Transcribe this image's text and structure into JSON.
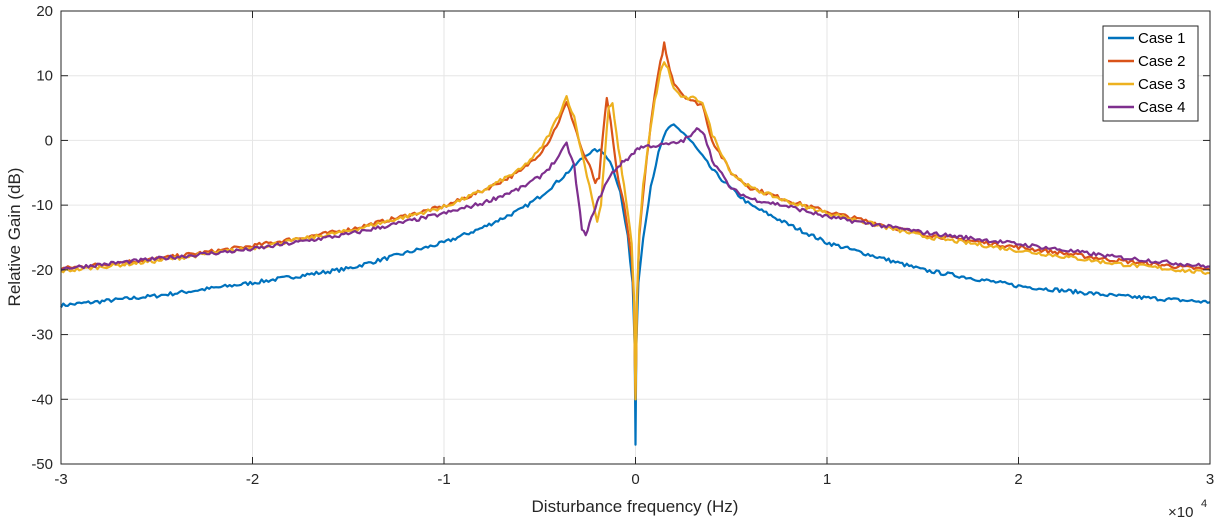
{
  "chart_data": {
    "type": "line",
    "title": "",
    "xlabel": "Disturbance frequency (Hz)",
    "ylabel": "Relative Gain (dB)",
    "x_exponent_label": "×10",
    "x_exponent_power": "4",
    "x_scale": 10000,
    "xlim": [
      -30000,
      30000
    ],
    "ylim": [
      -50,
      20
    ],
    "x_ticks": [
      -30000,
      -20000,
      -10000,
      0,
      10000,
      20000,
      30000
    ],
    "x_tick_labels": [
      "-3",
      "-2",
      "-1",
      "0",
      "1",
      "2",
      "3"
    ],
    "y_ticks": [
      -50,
      -40,
      -30,
      -20,
      -10,
      0,
      10,
      20
    ],
    "y_tick_labels": [
      "-50",
      "-40",
      "-30",
      "-20",
      "-10",
      "0",
      "10",
      "20"
    ],
    "grid": true,
    "legend_position": "top-right",
    "series": [
      {
        "name": "Case 1",
        "color": "#0072BD",
        "x": [
          -30000,
          -25000,
          -20000,
          -15000,
          -10000,
          -8000,
          -6000,
          -5000,
          -4000,
          -3000,
          -2500,
          -2000,
          -1600,
          -1200,
          -800,
          -400,
          -150,
          -40,
          0,
          40,
          150,
          400,
          800,
          1200,
          1600,
          2000,
          2500,
          3000,
          4000,
          5000,
          6000,
          8000,
          10000,
          15000,
          20000,
          25000,
          30000
        ],
        "y": [
          -25.5,
          -24.0,
          -22.0,
          -19.8,
          -15.8,
          -13.5,
          -10.7,
          -8.7,
          -6.2,
          -3.4,
          -2.0,
          -1.5,
          -2.0,
          -4.0,
          -8.0,
          -15.0,
          -22.0,
          -32.0,
          -47.0,
          -32.0,
          -22.0,
          -15.0,
          -7.0,
          -2.0,
          1.5,
          2.3,
          1.2,
          -0.5,
          -4.5,
          -7.5,
          -10.0,
          -13.0,
          -15.8,
          -20.0,
          -22.5,
          -24.0,
          -25.0
        ]
      },
      {
        "name": "Case 2",
        "color": "#D95319",
        "x": [
          -30000,
          -25000,
          -20000,
          -15000,
          -10000,
          -8000,
          -6000,
          -5000,
          -4500,
          -4000,
          -3600,
          -3200,
          -2800,
          -2400,
          -2100,
          -1900,
          -1700,
          -1500,
          -1300,
          -1100,
          -900,
          -600,
          -400,
          -200,
          -80,
          0,
          80,
          200,
          400,
          700,
          1000,
          1300,
          1500,
          1700,
          2000,
          2500,
          3000,
          3500,
          4000,
          5000,
          6000,
          8000,
          10000,
          15000,
          20000,
          25000,
          30000
        ],
        "y": [
          -19.8,
          -18.3,
          -16.3,
          -13.8,
          -10.2,
          -7.8,
          -4.8,
          -2.0,
          0.0,
          3.0,
          5.8,
          2.5,
          -1.5,
          -4.0,
          -6.5,
          -6.0,
          1.0,
          6.3,
          3.0,
          -2.0,
          -6.0,
          -10.0,
          -14.0,
          -18.0,
          -25.0,
          -40.0,
          -25.0,
          -15.0,
          -8.0,
          0.0,
          7.0,
          12.0,
          15.0,
          12.0,
          9.0,
          7.0,
          6.0,
          5.5,
          0.0,
          -5.0,
          -7.3,
          -9.3,
          -11.0,
          -14.5,
          -16.5,
          -18.5,
          -20.0
        ]
      },
      {
        "name": "Case 3",
        "color": "#EDB120",
        "x": [
          -30000,
          -25000,
          -20000,
          -15000,
          -10000,
          -8000,
          -6000,
          -5000,
          -4500,
          -4000,
          -3600,
          -3200,
          -2800,
          -2400,
          -2000,
          -1800,
          -1600,
          -1400,
          -1200,
          -1000,
          -800,
          -600,
          -400,
          -200,
          -80,
          0,
          80,
          200,
          400,
          700,
          1000,
          1300,
          1500,
          1700,
          2000,
          2500,
          3000,
          3500,
          4000,
          5000,
          6000,
          8000,
          10000,
          15000,
          20000,
          25000,
          30000
        ],
        "y": [
          -20.2,
          -18.6,
          -16.6,
          -14.0,
          -10.3,
          -7.8,
          -4.5,
          -1.5,
          1.0,
          4.0,
          6.8,
          3.5,
          -2.0,
          -7.0,
          -12.5,
          -10.0,
          -2.0,
          5.2,
          5.5,
          1.0,
          -3.0,
          -7.0,
          -11.0,
          -16.0,
          -24.0,
          -40.0,
          -24.0,
          -14.0,
          -7.0,
          0.0,
          6.0,
          10.5,
          12.2,
          11.0,
          8.0,
          6.5,
          6.5,
          6.0,
          1.0,
          -5.0,
          -7.3,
          -9.5,
          -11.2,
          -14.8,
          -17.0,
          -19.0,
          -20.5
        ]
      },
      {
        "name": "Case 4",
        "color": "#7E2F8E",
        "x": [
          -30000,
          -25000,
          -20000,
          -15000,
          -10000,
          -8000,
          -6000,
          -5000,
          -4500,
          -4000,
          -3600,
          -3200,
          -3000,
          -2800,
          -2600,
          -2400,
          -2200,
          -1900,
          -1600,
          -1200,
          -900,
          -600,
          -400,
          -200,
          -60,
          0,
          100,
          400,
          800,
          1200,
          1600,
          2000,
          2500,
          3000,
          3300,
          3600,
          4000,
          5000,
          6000,
          8000,
          10000,
          15000,
          20000,
          25000,
          30000
        ],
        "y": [
          -19.8,
          -18.3,
          -16.8,
          -14.5,
          -11.3,
          -9.7,
          -7.4,
          -5.6,
          -4.2,
          -2.5,
          -0.5,
          -4.0,
          -9.0,
          -13.5,
          -14.8,
          -13.0,
          -11.0,
          -9.0,
          -7.0,
          -5.0,
          -4.0,
          -3.2,
          -2.8,
          -2.2,
          -2.0,
          -1.5,
          -1.2,
          -1.0,
          -0.8,
          -0.8,
          -0.6,
          -0.5,
          0.0,
          1.0,
          2.0,
          1.0,
          -3.0,
          -7.5,
          -9.0,
          -10.2,
          -11.8,
          -14.2,
          -16.0,
          -18.0,
          -19.5
        ]
      }
    ]
  }
}
